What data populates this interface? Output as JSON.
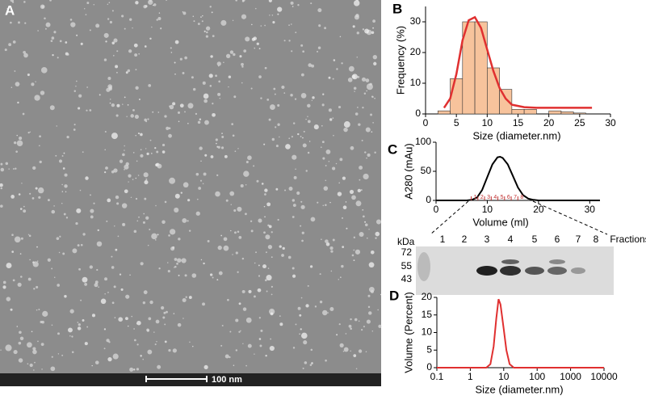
{
  "panels": [
    "A",
    "B",
    "C",
    "D"
  ],
  "scale_bar": "100 nm",
  "gel": {
    "unit": "kDa",
    "markers": [
      72,
      55,
      43
    ],
    "lanes": [
      "1",
      "2",
      "3",
      "4",
      "5",
      "6",
      "7",
      "8"
    ],
    "lanes_title": "Fractions"
  },
  "chart_data": [
    {
      "type": "histogram",
      "xlabel": "Size (diameter.nm)",
      "ylabel": "Frequency (%)",
      "bins": [
        2,
        4,
        6,
        8,
        10,
        12,
        14,
        16,
        18,
        20,
        22,
        24,
        26,
        28
      ],
      "values": [
        1,
        11.5,
        30,
        30,
        15,
        8,
        1.5,
        1.5,
        0,
        1,
        0.7,
        0.3,
        0
      ],
      "color": "#f7c39c",
      "fit": {
        "color": "#e03030",
        "x": [
          3,
          4,
          5,
          6,
          7,
          8,
          9,
          10,
          11,
          12,
          13,
          14,
          16,
          18,
          20,
          24,
          27
        ],
        "y": [
          2,
          5,
          13,
          24,
          30.5,
          31.5,
          28,
          21,
          14,
          8.5,
          5,
          3,
          2.2,
          2,
          2,
          2,
          2
        ]
      },
      "xlim": [
        0,
        30
      ],
      "xticks": [
        0,
        5,
        10,
        15,
        20,
        25,
        30
      ],
      "ylim": [
        0,
        35
      ],
      "yticks": [
        0,
        10,
        20,
        30
      ]
    },
    {
      "type": "line",
      "xlabel": "Volume (ml)",
      "ylabel": "A280 (mAu)",
      "x": [
        0,
        6,
        7,
        8,
        9,
        10,
        11,
        12,
        12.5,
        13,
        14,
        15,
        16,
        17,
        18,
        19,
        20,
        32
      ],
      "y": [
        0,
        0,
        1,
        5,
        18,
        40,
        62,
        74,
        75,
        73,
        62,
        42,
        22,
        9,
        3,
        1,
        0,
        0
      ],
      "color": "#000000",
      "fractions": {
        "labels": [
          "1",
          "2",
          "3",
          "4",
          "5",
          "6",
          "7",
          "8"
        ],
        "x": [
          7.5,
          8.8,
          10.1,
          11.4,
          12.7,
          14,
          15.3,
          16.6
        ],
        "color": "#c03030"
      },
      "xlim": [
        0,
        32
      ],
      "xticks": [
        0,
        10,
        20,
        30
      ],
      "ylim": [
        0,
        100
      ],
      "yticks": [
        0,
        50,
        100
      ]
    },
    {
      "type": "line",
      "log_x": true,
      "xlabel": "Size (diameter.nm)",
      "ylabel": "Volume (Percent)",
      "x": [
        0.1,
        3,
        4,
        5,
        6,
        7,
        8,
        10,
        12,
        15,
        20,
        10000
      ],
      "y": [
        0,
        0,
        1,
        6,
        14,
        19.5,
        18,
        11,
        5,
        1,
        0,
        0
      ],
      "color": "#e03030",
      "xlim": [
        0.1,
        10000
      ],
      "xticks": [
        0.1,
        1,
        10,
        100,
        1000,
        10000
      ],
      "ylim": [
        0,
        20
      ],
      "yticks": [
        0,
        5,
        10,
        15,
        20
      ]
    }
  ]
}
